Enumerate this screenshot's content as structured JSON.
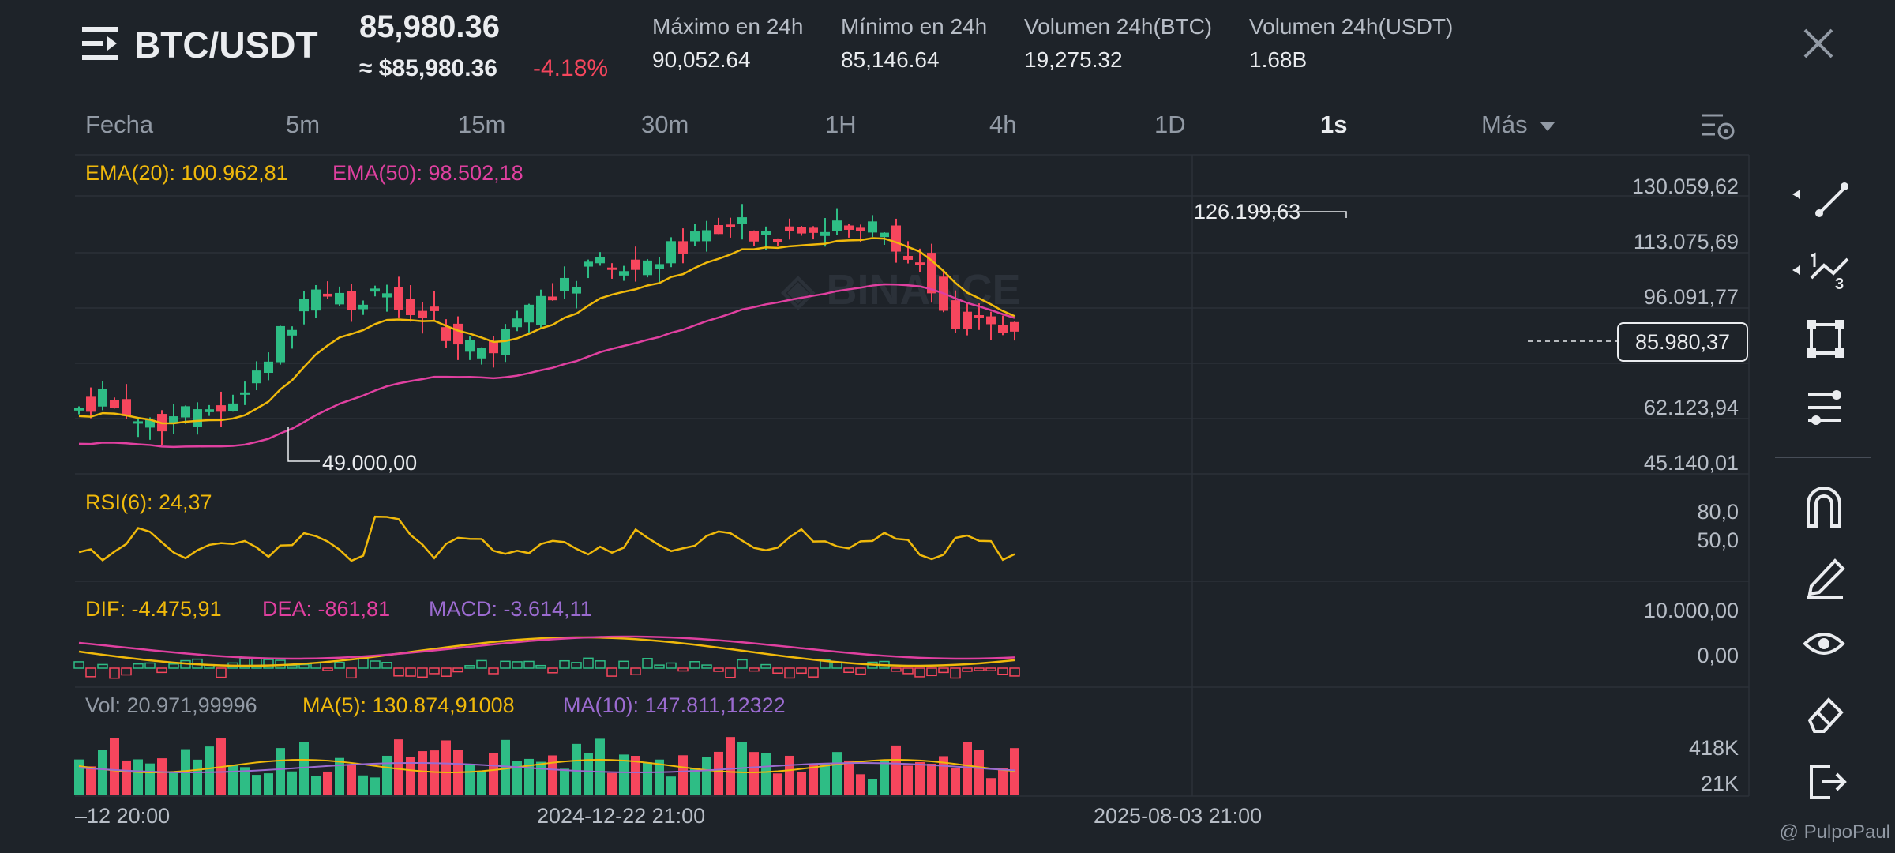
{
  "header": {
    "menu_icon": "menu-icon",
    "pair": "BTC/USDT",
    "price": "85,980.36",
    "price_usd": "≈ $85,980.36",
    "change_pct": "-4.18%",
    "close_icon": "close-icon",
    "stats": [
      {
        "label": "Máximo en 24h",
        "value": "90,052.64"
      },
      {
        "label": "Mínimo en 24h",
        "value": "85,146.64"
      },
      {
        "label": "Volumen 24h(BTC)",
        "value": "19,275.32"
      },
      {
        "label": "Volumen 24h(USDT)",
        "value": "1.68B"
      }
    ]
  },
  "timeframes": [
    "Fecha",
    "5m",
    "15m",
    "30m",
    "1H",
    "4h",
    "1D",
    "1s",
    "Más"
  ],
  "active_timeframe": "1s",
  "main_chart": {
    "ema20": "EMA(20): 100.962,81",
    "ema50": "EMA(50): 98.502,18",
    "y_axis": [
      "130.059,62",
      "113.075,69",
      "96.091,77",
      "62.123,94",
      "45.140,01"
    ],
    "high_marker": "126.199,63",
    "low_marker": "49.000,00",
    "last_price": "85.980,37",
    "watermark": "BINANCE"
  },
  "rsi": {
    "label": "RSI(6): 24,37",
    "axis": [
      "80,0",
      "50,0"
    ]
  },
  "macd": {
    "dif": "DIF: -4.475,91",
    "dea": "DEA: -861,81",
    "macd": "MACD: -3.614,11",
    "axis": [
      "10.000,00",
      "0,00"
    ]
  },
  "volume": {
    "vol": "Vol: 20.971,99996",
    "ma5": "MA(5): 130.874,91008",
    "ma10": "MA(10): 147.811,12322",
    "axis": [
      "418K",
      "21K"
    ]
  },
  "time_axis": [
    "–12 20:00",
    "2024-12-22 21:00",
    "2025-08-03 21:00"
  ],
  "tools": [
    "trend-line-icon",
    "fibonacci-icon",
    "rectangle-icon",
    "indicator-settings-icon",
    "magnet-icon",
    "pencil-icon",
    "eye-icon",
    "eraser-icon",
    "exit-icon"
  ],
  "credit": "@ PulpoPaul",
  "colors": {
    "background": "#1e2329",
    "up": "#2ebd85",
    "down": "#f6465d",
    "ema20": "#f0b90b",
    "ema50": "#e040a0",
    "macd": "#9b6bd0",
    "grid": "#2b3139"
  }
}
